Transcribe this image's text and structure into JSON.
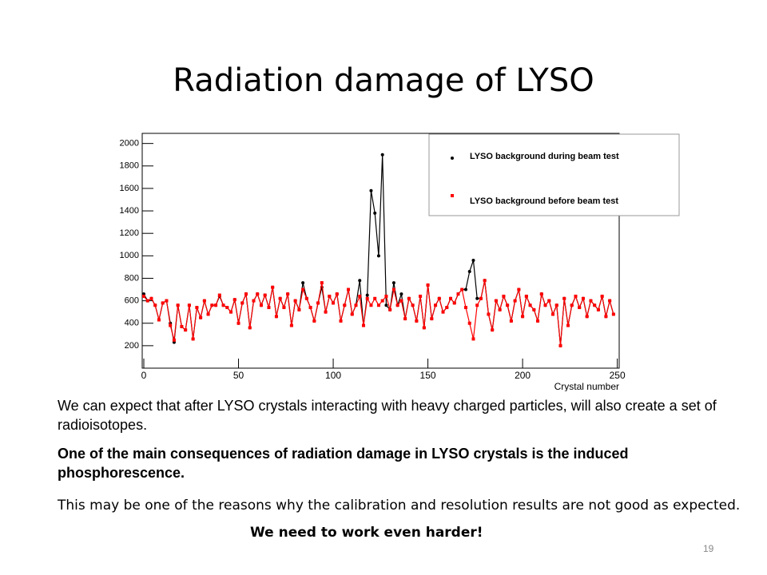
{
  "slide": {
    "title": "Radiation damage of LYSO",
    "paragraph_1": "We can expect that after LYSO crystals interacting with heavy charged particles, will also create a set of radioisotopes.",
    "paragraph_2": "One of the main consequences of radiation damage in LYSO crystals is the  induced phosphorescence.",
    "paragraph_3": "This may be one of the reasons why the calibration and resolution  results are not good as expected.",
    "paragraph_4": "We need to work even harder!",
    "page_number": "19"
  },
  "chart_data": {
    "type": "line",
    "x_label": "Crystal number",
    "xlim": [
      0,
      251
    ],
    "ylim": [
      0,
      2090
    ],
    "xticks": [
      0,
      50,
      100,
      150,
      200,
      250
    ],
    "yticks": [
      200,
      400,
      600,
      800,
      1000,
      1200,
      1400,
      1600,
      1800,
      2000
    ],
    "grid": false,
    "legend": "top-right",
    "x": [
      0,
      2,
      4,
      6,
      8,
      10,
      12,
      14,
      16,
      18,
      20,
      22,
      24,
      26,
      28,
      30,
      32,
      34,
      36,
      38,
      40,
      42,
      44,
      46,
      48,
      50,
      52,
      54,
      56,
      58,
      60,
      62,
      64,
      66,
      68,
      70,
      72,
      74,
      76,
      78,
      80,
      82,
      84,
      86,
      88,
      90,
      92,
      94,
      96,
      98,
      100,
      102,
      104,
      106,
      108,
      110,
      112,
      114,
      116,
      118,
      120,
      122,
      124,
      126,
      128,
      130,
      132,
      134,
      136,
      138,
      140,
      142,
      144,
      146,
      148,
      150,
      152,
      154,
      156,
      158,
      160,
      162,
      164,
      166,
      168,
      170,
      172,
      174,
      176,
      178,
      180,
      182,
      184,
      186,
      188,
      190,
      192,
      194,
      196,
      198,
      200,
      202,
      204,
      206,
      208,
      210,
      212,
      214,
      216,
      218,
      220,
      222,
      224,
      226,
      228,
      230,
      232,
      234,
      236,
      238,
      240,
      242,
      244,
      246,
      248
    ],
    "series": [
      {
        "name": "LYSO background during beam test",
        "color": "#000000",
        "marker": "circle",
        "values": [
          660,
          600,
          620,
          560,
          430,
          580,
          600,
          400,
          230,
          560,
          370,
          340,
          560,
          260,
          540,
          450,
          600,
          480,
          560,
          560,
          640,
          560,
          540,
          500,
          610,
          400,
          580,
          660,
          360,
          600,
          660,
          560,
          650,
          540,
          720,
          460,
          620,
          540,
          660,
          380,
          600,
          520,
          760,
          620,
          540,
          420,
          580,
          720,
          500,
          640,
          580,
          660,
          420,
          560,
          700,
          480,
          560,
          780,
          380,
          650,
          1580,
          1380,
          1000,
          1900,
          560,
          520,
          760,
          560,
          660,
          440,
          620,
          560,
          420,
          640,
          360,
          740,
          440,
          560,
          620,
          500,
          540,
          620,
          580,
          660,
          700,
          700,
          860,
          960,
          620,
          620,
          780,
          480,
          340,
          600,
          520,
          640,
          560,
          420,
          600,
          700,
          460,
          640,
          560,
          520,
          420,
          660,
          560,
          600,
          480,
          560,
          200,
          620,
          380,
          560,
          640,
          540,
          620,
          460,
          600,
          560,
          520,
          640,
          460,
          600,
          480
        ]
      },
      {
        "name": "LYSO background before beam test",
        "color": "#ff0000",
        "marker": "square",
        "values": [
          640,
          600,
          620,
          560,
          430,
          580,
          600,
          380,
          250,
          560,
          370,
          340,
          560,
          260,
          540,
          450,
          600,
          480,
          560,
          560,
          650,
          560,
          540,
          500,
          610,
          400,
          580,
          660,
          360,
          600,
          660,
          560,
          650,
          540,
          720,
          460,
          620,
          540,
          660,
          380,
          600,
          520,
          700,
          620,
          540,
          420,
          580,
          760,
          500,
          640,
          580,
          660,
          420,
          560,
          700,
          480,
          560,
          640,
          380,
          620,
          560,
          620,
          560,
          600,
          640,
          520,
          700,
          560,
          600,
          440,
          620,
          560,
          420,
          640,
          360,
          740,
          440,
          560,
          620,
          500,
          540,
          620,
          580,
          660,
          700,
          540,
          400,
          260,
          560,
          620,
          780,
          480,
          340,
          600,
          520,
          640,
          560,
          420,
          600,
          700,
          460,
          640,
          560,
          520,
          420,
          660,
          560,
          600,
          480,
          560,
          200,
          620,
          380,
          560,
          640,
          540,
          620,
          460,
          600,
          560,
          520,
          640,
          460,
          600,
          480
        ]
      }
    ]
  }
}
